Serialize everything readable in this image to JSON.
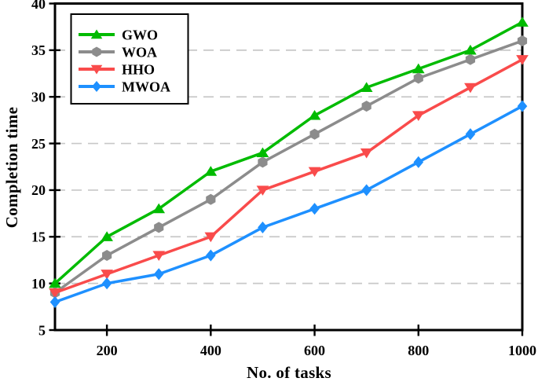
{
  "chart_data": {
    "type": "line",
    "title": "",
    "xlabel": "No. of tasks",
    "ylabel": "Completion time",
    "x": [
      100,
      200,
      300,
      400,
      500,
      600,
      700,
      800,
      900,
      1000
    ],
    "xlim": [
      100,
      1000
    ],
    "ylim": [
      5,
      40
    ],
    "xticks": [
      200,
      400,
      600,
      800,
      1000
    ],
    "yticks": [
      5,
      10,
      15,
      20,
      25,
      30,
      35,
      40
    ],
    "grid": {
      "horizontal": true,
      "style": "dashed",
      "color": "#C8C8C8",
      "at": [
        10,
        15,
        20,
        25,
        30,
        35
      ]
    },
    "legend": {
      "position": "upper-left",
      "entries": [
        "GWO",
        "WOA",
        "HHO",
        "MWOA"
      ]
    },
    "series": [
      {
        "name": "GWO",
        "color": "#00BB00",
        "marker": "triangle-up",
        "values": [
          10,
          15,
          18,
          22,
          24,
          28,
          31,
          33,
          35,
          38
        ]
      },
      {
        "name": "WOA",
        "color": "#8C8C8C",
        "marker": "hexagon",
        "values": [
          9,
          13,
          16,
          19,
          23,
          26,
          29,
          32,
          34,
          36
        ]
      },
      {
        "name": "HHO",
        "color": "#F94B4B",
        "marker": "triangle-down",
        "values": [
          9,
          11,
          13,
          15,
          20,
          22,
          24,
          28,
          31,
          34
        ]
      },
      {
        "name": "MWOA",
        "color": "#1E90FF",
        "marker": "diamond",
        "values": [
          8,
          10,
          11,
          13,
          16,
          18,
          20,
          23,
          26,
          29
        ]
      }
    ]
  },
  "colors": {
    "axis": "#000000",
    "background": "#FFFFFF",
    "grid": "#C8C8C8"
  }
}
